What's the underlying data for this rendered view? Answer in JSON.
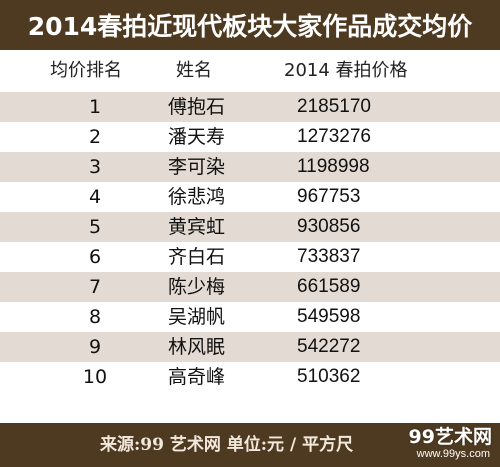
{
  "title": "2014春拍近现代板块大家作品成交均价",
  "columns": {
    "rank": "均价排名",
    "name": "姓名",
    "price": "2014 春拍价格"
  },
  "rows": [
    {
      "rank": "1",
      "name": "傅抱石",
      "price": "2185170"
    },
    {
      "rank": "2",
      "name": "潘天寿",
      "price": "1273276"
    },
    {
      "rank": "3",
      "name": "李可染",
      "price": "1198998"
    },
    {
      "rank": "4",
      "name": "徐悲鸿",
      "price": "967753"
    },
    {
      "rank": "5",
      "name": "黄宾虹",
      "price": "930856"
    },
    {
      "rank": "6",
      "name": "齐白石",
      "price": "733837"
    },
    {
      "rank": "7",
      "name": "陈少梅",
      "price": "661589"
    },
    {
      "rank": "8",
      "name": "吴湖帆",
      "price": "549598"
    },
    {
      "rank": "9",
      "name": "林风眠",
      "price": "542272"
    },
    {
      "rank": "10",
      "name": "高奇峰",
      "price": "510362"
    }
  ],
  "footer": "来源:99 艺术网 单位:元 / 平方尺",
  "watermark": {
    "main": "99艺术网",
    "url": "www.99ys.com"
  },
  "colors": {
    "banner": "#4e3a21",
    "shaded_row": "#e3dbd3"
  }
}
